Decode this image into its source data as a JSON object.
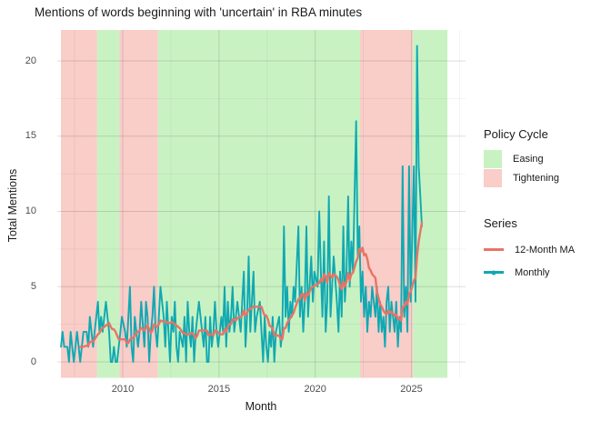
{
  "title": "Mentions of words beginning with 'uncertain' in RBA minutes",
  "axes": {
    "x_label": "Month",
    "y_label": "Total Mentions",
    "x_ticks": [
      2010,
      2015,
      2020,
      2025
    ],
    "y_ticks": [
      0,
      5,
      10,
      15,
      20
    ]
  },
  "legend": {
    "policy_title": "Policy Cycle",
    "policy_items": [
      {
        "label": "Easing",
        "color_key": "easing"
      },
      {
        "label": "Tightening",
        "color_key": "tightening"
      }
    ],
    "series_title": "Series",
    "series_items": [
      {
        "label": "12-Month MA",
        "color_key": "ma"
      },
      {
        "label": "Monthly",
        "color_key": "monthly"
      }
    ]
  },
  "colors": {
    "easing": "#c9f2c3",
    "tightening": "#f9cdc8",
    "monthly": "#10a9b2",
    "ma": "#e87466",
    "grid_major": "rgba(0,0,0,0.13)",
    "grid_minor": "rgba(0,0,0,0.06)",
    "tick_text": "#4d4d4d",
    "text": "#1a1a1a"
  },
  "chart_data": {
    "type": "line",
    "x_unit": "decimal_year",
    "xlim": [
      2006.6,
      2027.2
    ],
    "ylim": [
      0,
      21
    ],
    "grid": true,
    "legend_position": "right",
    "x_minor_ticks": [
      2007.5,
      2012.5,
      2017.5,
      2022.5,
      2027.5
    ],
    "y_minor_ticks": [
      2.5,
      7.5,
      12.5,
      17.5
    ],
    "regions": [
      {
        "cycle": "Tightening",
        "start": 2006.79,
        "end": 2008.67
      },
      {
        "cycle": "Easing",
        "start": 2008.67,
        "end": 2009.83
      },
      {
        "cycle": "Tightening",
        "start": 2009.83,
        "end": 2011.83
      },
      {
        "cycle": "Easing",
        "start": 2011.83,
        "end": 2022.33
      },
      {
        "cycle": "Tightening",
        "start": 2022.33,
        "end": 2025.08
      },
      {
        "cycle": "Easing",
        "start": 2025.08,
        "end": 2026.87
      }
    ],
    "series": [
      {
        "name": "Monthly",
        "color_key": "monthly",
        "source": "monthly"
      },
      {
        "name": "12-Month MA",
        "color_key": "ma",
        "derived": "rolling_mean_12_of_monthly"
      }
    ],
    "monthly": [
      {
        "year": 2006,
        "start_month": 10,
        "values": [
          1,
          2,
          1
        ]
      },
      {
        "year": 2007,
        "start_month": 2,
        "values": [
          1,
          0,
          2,
          1,
          0,
          1,
          2,
          1,
          0,
          1,
          2
        ]
      },
      {
        "year": 2008,
        "start_month": 2,
        "values": [
          2,
          1,
          3,
          2,
          1,
          2,
          3,
          4,
          2,
          3,
          2
        ]
      },
      {
        "year": 2009,
        "start_month": 2,
        "values": [
          4,
          3,
          2,
          0,
          0,
          1,
          0,
          0,
          1,
          2,
          3
        ]
      },
      {
        "year": 2010,
        "start_month": 2,
        "values": [
          2,
          1,
          3,
          5,
          1,
          0,
          3,
          2,
          1,
          2,
          4
        ]
      },
      {
        "year": 2011,
        "start_month": 2,
        "values": [
          1,
          4,
          3,
          0,
          2,
          3,
          5,
          2,
          1,
          3,
          5
        ]
      },
      {
        "year": 2012,
        "start_month": 2,
        "values": [
          3,
          1,
          4,
          2,
          0,
          3,
          2,
          4,
          1,
          0,
          2
        ]
      },
      {
        "year": 2013,
        "start_month": 2,
        "values": [
          1,
          3,
          0,
          4,
          2,
          1,
          3,
          0,
          2,
          3,
          4
        ]
      },
      {
        "year": 2014,
        "start_month": 2,
        "values": [
          2,
          1,
          3,
          0,
          0,
          3,
          1,
          2,
          4,
          2,
          1
        ]
      },
      {
        "year": 2015,
        "start_month": 2,
        "values": [
          3,
          2,
          5,
          1,
          4,
          2,
          3,
          5,
          2,
          3,
          4
        ]
      },
      {
        "year": 2016,
        "start_month": 2,
        "values": [
          2,
          4,
          6,
          1,
          3,
          7,
          2,
          4,
          6,
          2,
          3
        ]
      },
      {
        "year": 2017,
        "start_month": 2,
        "values": [
          4,
          2,
          0,
          3,
          1,
          0,
          2,
          1,
          3,
          0,
          2
        ]
      },
      {
        "year": 2018,
        "start_month": 2,
        "values": [
          3,
          1,
          2,
          9,
          3,
          5,
          2,
          4,
          3,
          5,
          4
        ]
      },
      {
        "year": 2019,
        "start_month": 2,
        "values": [
          9,
          3,
          5,
          2,
          4,
          9,
          3,
          5,
          7,
          4,
          6
        ]
      },
      {
        "year": 2020,
        "start_month": 2,
        "values": [
          5,
          10,
          6,
          3,
          8,
          2,
          4,
          11,
          3,
          5,
          7
        ]
      },
      {
        "year": 2021,
        "start_month": 2,
        "values": [
          4,
          2,
          6,
          3,
          9,
          4,
          6,
          11,
          5,
          8,
          6
        ]
      },
      {
        "year": 2022,
        "start_month": 2,
        "values": [
          16,
          7,
          9,
          4,
          6,
          3,
          5,
          2,
          4,
          3,
          5
        ]
      },
      {
        "year": 2023,
        "start_month": 2,
        "values": [
          3,
          5,
          2,
          4,
          2,
          3,
          1,
          4,
          5,
          2,
          4
        ]
      },
      {
        "year": 2024,
        "start_month": 2,
        "values": [
          2,
          4,
          1,
          3,
          2,
          13,
          3,
          5,
          2,
          13,
          4
        ]
      },
      {
        "year": 2025,
        "start_month": 2,
        "values": [
          13,
          4,
          21,
          13,
          11,
          9
        ]
      }
    ]
  }
}
